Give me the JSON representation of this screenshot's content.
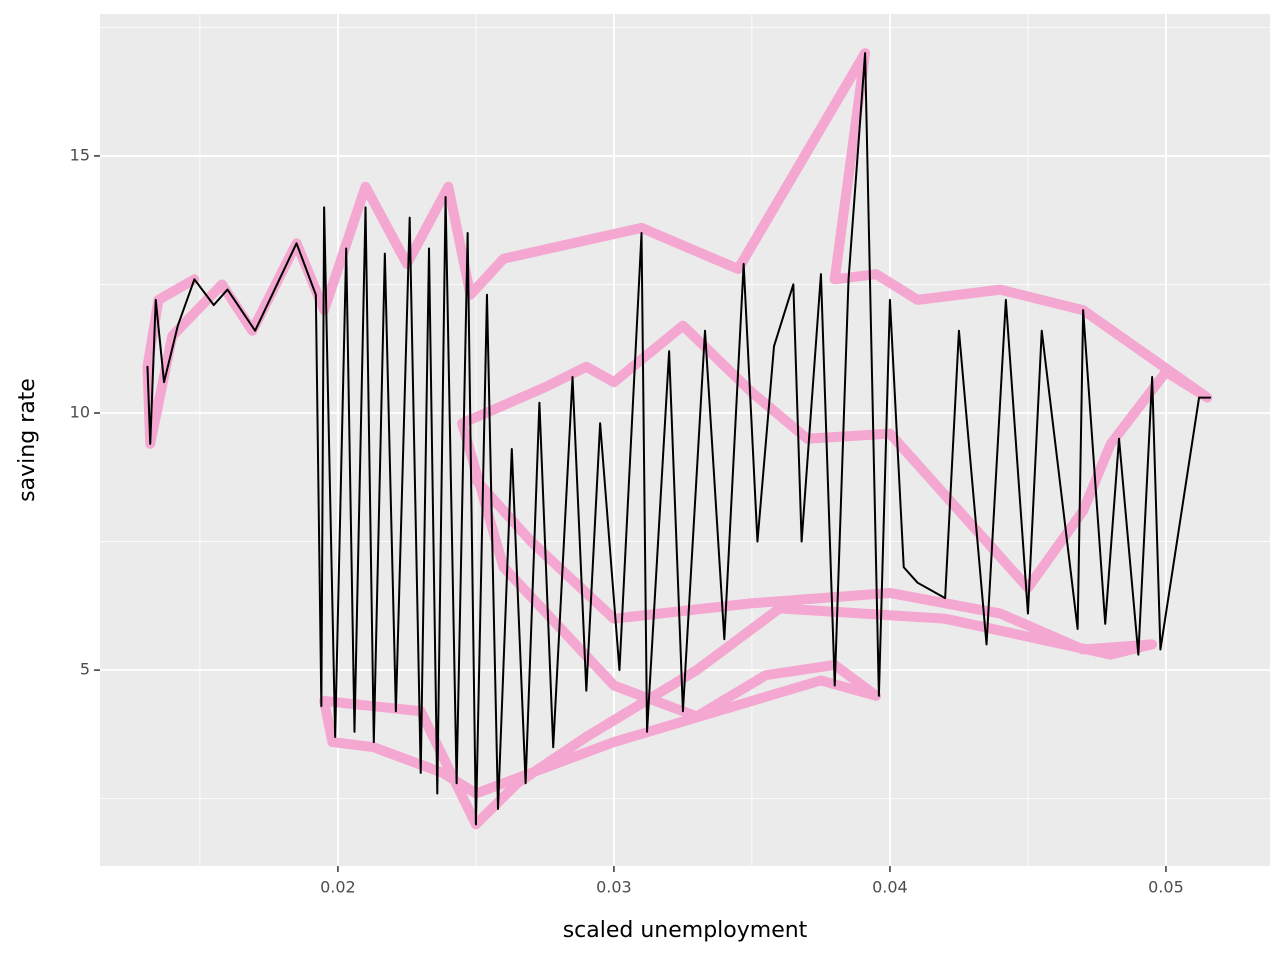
{
  "chart_data": {
    "type": "path",
    "x_label": "scaled unemployment",
    "y_label": "saving rate",
    "xlim": [
      0.01138,
      0.05377
    ],
    "ylim": [
      1.19,
      17.76
    ],
    "xticks": [
      0.02,
      0.03,
      0.04,
      0.05
    ],
    "yticks": [
      5,
      10,
      15
    ],
    "xminorticks": [
      0.015,
      0.025,
      0.035,
      0.045
    ],
    "yminorticks": [
      2.5,
      7.5,
      12.5,
      17.5
    ],
    "grid": true,
    "series": [
      {
        "color": "#f4a7d0",
        "width": 10,
        "x": [
          0.0148,
          0.0135,
          0.0131,
          0.0132,
          0.014,
          0.0158,
          0.0169,
          0.0185,
          0.0195,
          0.021,
          0.0225,
          0.024,
          0.0248,
          0.026,
          0.031,
          0.0345,
          0.0391,
          0.038,
          0.0395,
          0.041,
          0.044,
          0.047,
          0.0515,
          0.05,
          0.048,
          0.047,
          0.045,
          0.04,
          0.037,
          0.035,
          0.0325,
          0.03,
          0.029,
          0.0275,
          0.0245,
          0.026,
          0.03,
          0.033,
          0.0355,
          0.038,
          0.0395,
          0.0375,
          0.03,
          0.025,
          0.0238,
          0.0213,
          0.0198,
          0.0195,
          0.023,
          0.025,
          0.0265,
          0.029,
          0.033,
          0.036,
          0.042,
          0.048,
          0.0495,
          0.047,
          0.044,
          0.04,
          0.035,
          0.03,
          0.027,
          0.025
        ],
        "y": [
          12.6,
          12.2,
          10.9,
          9.4,
          11.5,
          12.5,
          11.6,
          13.3,
          12.0,
          14.4,
          12.9,
          14.4,
          12.3,
          13.0,
          13.6,
          12.8,
          17.0,
          12.6,
          12.7,
          12.2,
          12.4,
          12.0,
          10.3,
          10.8,
          9.4,
          8.1,
          6.6,
          9.6,
          9.5,
          10.4,
          11.7,
          10.6,
          10.9,
          10.5,
          9.8,
          7.0,
          4.7,
          4.1,
          4.9,
          5.1,
          4.5,
          4.8,
          3.6,
          2.6,
          3.0,
          3.5,
          3.6,
          4.4,
          4.2,
          2.0,
          2.8,
          3.7,
          5.0,
          6.2,
          6.0,
          5.3,
          5.5,
          5.4,
          6.1,
          6.5,
          6.3,
          6.0,
          7.5,
          8.7
        ]
      },
      {
        "color": "#000000",
        "width": 2,
        "x": [
          0.0131,
          0.0132,
          0.0134,
          0.0137,
          0.0142,
          0.0148,
          0.0155,
          0.016,
          0.017,
          0.0185,
          0.0192,
          0.0194,
          0.0195,
          0.0199,
          0.0203,
          0.0206,
          0.021,
          0.0213,
          0.0217,
          0.0221,
          0.0226,
          0.023,
          0.0233,
          0.0236,
          0.0239,
          0.0243,
          0.0247,
          0.025,
          0.0254,
          0.0258,
          0.0263,
          0.0268,
          0.0273,
          0.0278,
          0.0285,
          0.029,
          0.0295,
          0.0302,
          0.031,
          0.0312,
          0.032,
          0.0325,
          0.0333,
          0.034,
          0.0347,
          0.0352,
          0.0358,
          0.0365,
          0.0368,
          0.0375,
          0.038,
          0.0385,
          0.0391,
          0.0396,
          0.04,
          0.0405,
          0.041,
          0.042,
          0.0425,
          0.0435,
          0.0442,
          0.045,
          0.0455,
          0.0468,
          0.047,
          0.0478,
          0.0483,
          0.049,
          0.0495,
          0.0498,
          0.0512,
          0.0516
        ],
        "y": [
          10.9,
          9.4,
          12.2,
          10.6,
          11.7,
          12.6,
          12.1,
          12.4,
          11.6,
          13.3,
          12.3,
          4.3,
          14.0,
          3.7,
          13.2,
          3.8,
          14.0,
          3.6,
          13.1,
          4.2,
          13.8,
          3.0,
          13.2,
          2.6,
          14.2,
          2.8,
          13.5,
          2.0,
          12.3,
          2.3,
          9.3,
          2.8,
          10.2,
          3.5,
          10.7,
          4.6,
          9.8,
          5.0,
          13.5,
          3.8,
          11.2,
          4.2,
          11.6,
          5.6,
          12.9,
          7.5,
          11.3,
          12.5,
          7.5,
          12.7,
          4.7,
          12.6,
          17.0,
          4.5,
          12.2,
          7.0,
          6.7,
          6.4,
          11.6,
          5.5,
          12.2,
          6.1,
          11.6,
          5.8,
          12.0,
          5.9,
          9.5,
          5.3,
          10.7,
          5.4,
          10.3,
          10.3
        ]
      }
    ]
  }
}
